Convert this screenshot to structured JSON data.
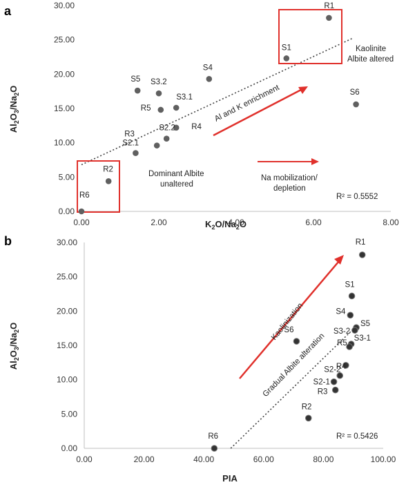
{
  "colors": {
    "point": "#606060",
    "red": "#e0302b",
    "trend": "#404040",
    "axis": "#bfbfbf"
  },
  "chart_data": [
    {
      "type": "scatter",
      "panel": "a",
      "xlabel": "K₂O/Na₂O",
      "ylabel": "Al₂O₃/Na₂O",
      "xlim": [
        0,
        8
      ],
      "ylim": [
        0,
        30
      ],
      "xticks": [
        "0.00",
        "2.00",
        "4.00",
        "6.00",
        "8.00"
      ],
      "yticks": [
        "0.00",
        "5.00",
        "10.00",
        "15.00",
        "20.00",
        "25.00",
        "30.00"
      ],
      "points": [
        {
          "label": "R1",
          "x": 6.4,
          "y": 28.2
        },
        {
          "label": "S1",
          "x": 5.3,
          "y": 22.3
        },
        {
          "label": "S6",
          "x": 7.1,
          "y": 15.6
        },
        {
          "label": "S4",
          "x": 3.3,
          "y": 19.3
        },
        {
          "label": "S5",
          "x": 1.45,
          "y": 17.6
        },
        {
          "label": "S3.2",
          "x": 2.0,
          "y": 17.2
        },
        {
          "label": "R5",
          "x": 2.05,
          "y": 14.8
        },
        {
          "label": "S3.1",
          "x": 2.45,
          "y": 15.1
        },
        {
          "label": "R4",
          "x": 2.45,
          "y": 12.2
        },
        {
          "label": "S2.2",
          "x": 2.2,
          "y": 10.6
        },
        {
          "label": "R3",
          "x": 1.95,
          "y": 9.6
        },
        {
          "label": "S2.1",
          "x": 1.4,
          "y": 8.5
        },
        {
          "label": "R2",
          "x": 0.7,
          "y": 4.4
        },
        {
          "label": "R6",
          "x": 0.0,
          "y": 0.0
        }
      ],
      "trendline": {
        "x": [
          0.0,
          7.0
        ],
        "y": [
          6.8,
          25.2
        ]
      },
      "r2": "R² = 0.5552",
      "annotations": {
        "kaolinite_1": "Kaolinite",
        "kaolinite_2": "Albite altered",
        "albite_1": "Dominant Albite",
        "albite_2": "unaltered",
        "enrichment": "Al and K enrichment",
        "na_1": "Na mobilization/",
        "na_2": "depletion"
      }
    },
    {
      "type": "scatter",
      "panel": "b",
      "xlabel": "PIA",
      "ylabel": "Al₂O₃/Na₂O",
      "xlim": [
        0,
        100
      ],
      "ylim": [
        0,
        30
      ],
      "xticks": [
        "0.00",
        "20.00",
        "40.00",
        "60.00",
        "80.00",
        "100.00"
      ],
      "yticks": [
        "0.00",
        "5.00",
        "10.00",
        "15.00",
        "20.00",
        "25.00",
        "30.00"
      ],
      "points": [
        {
          "label": "R1",
          "x": 93,
          "y": 28.2
        },
        {
          "label": "S1",
          "x": 89.5,
          "y": 22.2
        },
        {
          "label": "S4",
          "x": 89,
          "y": 19.4
        },
        {
          "label": "S5",
          "x": 91,
          "y": 17.6
        },
        {
          "label": "S3-2",
          "x": 90.5,
          "y": 17.2
        },
        {
          "label": "S3-1",
          "x": 89.3,
          "y": 15.2
        },
        {
          "label": "R5",
          "x": 88.7,
          "y": 14.8
        },
        {
          "label": "R4",
          "x": 87.5,
          "y": 12.1
        },
        {
          "label": "S2-2",
          "x": 85.5,
          "y": 10.6
        },
        {
          "label": "S2-1",
          "x": 83.5,
          "y": 9.7
        },
        {
          "label": "R3",
          "x": 84,
          "y": 8.5
        },
        {
          "label": "R2",
          "x": 75,
          "y": 4.4
        },
        {
          "label": "S6",
          "x": 71,
          "y": 15.6
        },
        {
          "label": "R6",
          "x": 43.5,
          "y": 0.0
        }
      ],
      "trendline": {
        "x": [
          49,
          91
        ],
        "y": [
          0,
          17.8
        ]
      },
      "r2": "R² = 0.5426",
      "annotations": {
        "kaolinization": "Kaolinization",
        "gradual": "Gradual Albite alteration"
      }
    }
  ]
}
